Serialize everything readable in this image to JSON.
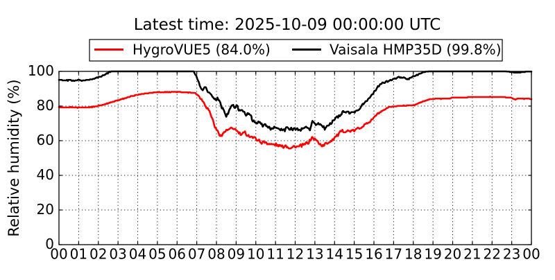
{
  "chart_data": {
    "type": "line",
    "title": "Latest time: 2025-10-09 00:00:00 UTC",
    "ylabel": "Relative humidity (%)",
    "xlabel": "",
    "xlim": [
      0,
      24
    ],
    "ylim": [
      0,
      100
    ],
    "yticks": [
      0,
      20,
      40,
      60,
      80,
      100
    ],
    "ytick_labels": [
      "0",
      "20",
      "40",
      "60",
      "80",
      "100"
    ],
    "xtick_labels": [
      "00",
      "01",
      "02",
      "03",
      "04",
      "05",
      "06",
      "07",
      "08",
      "09",
      "10",
      "11",
      "12",
      "13",
      "14",
      "15",
      "16",
      "17",
      "18",
      "19",
      "20",
      "21",
      "22",
      "23",
      "00"
    ],
    "grid": true,
    "grid_style": "dotted",
    "legend_position": "upper center, above axes",
    "series": [
      {
        "name": "HygroVUE5",
        "latest_value": "84.0%",
        "legend_label": "HygroVUE5 (84.0%)",
        "color": "#ff0000",
        "value_resolution": 0.3,
        "keypoints": [
          [
            0,
            79.4
          ],
          [
            0.3,
            79.0
          ],
          [
            0.6,
            79.3
          ],
          [
            0.9,
            79.1
          ],
          [
            1.2,
            79.3
          ],
          [
            1.5,
            79.3
          ],
          [
            1.75,
            79.5
          ],
          [
            2.2,
            80.6
          ],
          [
            2.7,
            82.3
          ],
          [
            3.2,
            84.0
          ],
          [
            3.7,
            85.7
          ],
          [
            4.2,
            86.9
          ],
          [
            4.7,
            87.7
          ],
          [
            5.1,
            88.0
          ],
          [
            5.6,
            88.1
          ],
          [
            6.2,
            88.1
          ],
          [
            6.9,
            87.7
          ],
          [
            7.15,
            85.2
          ],
          [
            7.4,
            81.2
          ],
          [
            7.6,
            77.8
          ],
          [
            7.8,
            72.3
          ],
          [
            7.97,
            66.6
          ],
          [
            8.12,
            64.2
          ],
          [
            8.27,
            63.0
          ],
          [
            8.42,
            65.4
          ],
          [
            8.6,
            66.6
          ],
          [
            8.9,
            67.4
          ],
          [
            9.05,
            65.5
          ],
          [
            9.25,
            63.5
          ],
          [
            9.45,
            64.6
          ],
          [
            9.6,
            62.9
          ],
          [
            9.85,
            62.0
          ],
          [
            10.1,
            60.7
          ],
          [
            10.3,
            59.4
          ],
          [
            10.55,
            58.7
          ],
          [
            10.8,
            57.4
          ],
          [
            11.0,
            57.7
          ],
          [
            11.25,
            56.6
          ],
          [
            11.5,
            57.3
          ],
          [
            11.7,
            56.2
          ],
          [
            11.95,
            56.8
          ],
          [
            12.2,
            56.8
          ],
          [
            12.45,
            57.8
          ],
          [
            12.7,
            59.0
          ],
          [
            12.85,
            61.5
          ],
          [
            13.0,
            60.6
          ],
          [
            13.3,
            57.8
          ],
          [
            13.45,
            57.0
          ],
          [
            13.65,
            58.7
          ],
          [
            13.8,
            60.0
          ],
          [
            14.05,
            62.6
          ],
          [
            14.3,
            64.9
          ],
          [
            14.55,
            65.7
          ],
          [
            14.75,
            65.4
          ],
          [
            15.0,
            65.9
          ],
          [
            15.25,
            67.4
          ],
          [
            15.55,
            69.4
          ],
          [
            15.8,
            71.1
          ],
          [
            16.0,
            73.4
          ],
          [
            16.25,
            75.9
          ],
          [
            16.45,
            77.2
          ],
          [
            16.65,
            78.5
          ],
          [
            16.85,
            79.5
          ],
          [
            17.2,
            80.1
          ],
          [
            17.7,
            80.3
          ],
          [
            18.0,
            80.3
          ],
          [
            18.2,
            81.3
          ],
          [
            18.5,
            82.7
          ],
          [
            18.8,
            83.8
          ],
          [
            19.1,
            84.2
          ],
          [
            19.85,
            84.2
          ],
          [
            19.95,
            84.9
          ],
          [
            20.7,
            84.9
          ],
          [
            20.85,
            85.3
          ],
          [
            22.6,
            85.3
          ],
          [
            22.72,
            84.9
          ],
          [
            22.95,
            84.9
          ],
          [
            23.05,
            84.3
          ],
          [
            23.18,
            83.7
          ],
          [
            23.28,
            84.2
          ],
          [
            23.9,
            84.2
          ],
          [
            24,
            84.0
          ]
        ],
        "noise_amplitude": [
          [
            0,
            0.25
          ],
          [
            2,
            0.25
          ],
          [
            4.5,
            0.15
          ],
          [
            6.9,
            0.2
          ],
          [
            7.4,
            0.9
          ],
          [
            8.2,
            1.2
          ],
          [
            13.8,
            1.2
          ],
          [
            14.6,
            0.9
          ],
          [
            16,
            0.6
          ],
          [
            17,
            0.3
          ],
          [
            17.5,
            0.07
          ],
          [
            24,
            0.07
          ]
        ]
      },
      {
        "name": "Vaisala HMP35D",
        "latest_value": "99.8%",
        "legend_label": "Vaisala HMP35D (99.8%)",
        "color": "#000000",
        "value_resolution": 0.3,
        "keypoints": [
          [
            0,
            95.4
          ],
          [
            0.25,
            94.6
          ],
          [
            0.5,
            95.1
          ],
          [
            0.8,
            94.6
          ],
          [
            1.0,
            95.1
          ],
          [
            1.2,
            94.7
          ],
          [
            1.4,
            94.9
          ],
          [
            1.6,
            95.4
          ],
          [
            1.8,
            95.9
          ],
          [
            2.0,
            96.6
          ],
          [
            2.2,
            97.5
          ],
          [
            2.4,
            98.6
          ],
          [
            2.6,
            99.9
          ],
          [
            2.8,
            100.6
          ],
          [
            3.0,
            100.7
          ],
          [
            6.6,
            100.7
          ],
          [
            6.85,
            100.3
          ],
          [
            7.0,
            96.5
          ],
          [
            7.1,
            93.5
          ],
          [
            7.2,
            90.6
          ],
          [
            7.3,
            89.6
          ],
          [
            7.42,
            90.7
          ],
          [
            7.6,
            87.6
          ],
          [
            7.78,
            85.4
          ],
          [
            7.9,
            83.2
          ],
          [
            8.05,
            84.2
          ],
          [
            8.2,
            81.5
          ],
          [
            8.35,
            76.9
          ],
          [
            8.5,
            74.2
          ],
          [
            8.65,
            78.0
          ],
          [
            8.85,
            80.0
          ],
          [
            8.95,
            78.8
          ],
          [
            9.07,
            79.4
          ],
          [
            9.2,
            76.9
          ],
          [
            9.37,
            77.4
          ],
          [
            9.5,
            75.5
          ],
          [
            9.65,
            76.1
          ],
          [
            9.85,
            71.6
          ],
          [
            10.0,
            70.1
          ],
          [
            10.18,
            70.8
          ],
          [
            10.36,
            68.1
          ],
          [
            10.54,
            68.8
          ],
          [
            10.72,
            66.9
          ],
          [
            10.9,
            67.5
          ],
          [
            11.07,
            66.2
          ],
          [
            11.25,
            67.0
          ],
          [
            11.48,
            66.1
          ],
          [
            11.65,
            67.4
          ],
          [
            11.83,
            66.5
          ],
          [
            12.05,
            67.0
          ],
          [
            12.3,
            66.2
          ],
          [
            12.55,
            67.6
          ],
          [
            12.75,
            67.0
          ],
          [
            12.88,
            71.3
          ],
          [
            13.0,
            69.4
          ],
          [
            13.17,
            70.7
          ],
          [
            13.35,
            68.1
          ],
          [
            13.52,
            66.7
          ],
          [
            13.7,
            68.8
          ],
          [
            13.88,
            70.8
          ],
          [
            14.05,
            72.8
          ],
          [
            14.22,
            74.5
          ],
          [
            14.4,
            76.1
          ],
          [
            14.58,
            77.0
          ],
          [
            14.75,
            76.1
          ],
          [
            14.92,
            75.9
          ],
          [
            15.1,
            77.5
          ],
          [
            15.28,
            78.8
          ],
          [
            15.45,
            81.2
          ],
          [
            15.62,
            82.8
          ],
          [
            15.8,
            84.8
          ],
          [
            15.97,
            87.5
          ],
          [
            16.15,
            90.5
          ],
          [
            16.32,
            92.4
          ],
          [
            16.5,
            93.2
          ],
          [
            16.68,
            94.1
          ],
          [
            16.85,
            95.0
          ],
          [
            17.02,
            95.9
          ],
          [
            17.2,
            96.4
          ],
          [
            17.38,
            96.8
          ],
          [
            17.55,
            96.4
          ],
          [
            17.72,
            95.6
          ],
          [
            17.9,
            96.4
          ],
          [
            18.07,
            97.5
          ],
          [
            18.25,
            98.3
          ],
          [
            18.45,
            99.2
          ],
          [
            18.7,
            100.0
          ],
          [
            18.9,
            100.6
          ],
          [
            22.6,
            100.4
          ],
          [
            22.8,
            99.9
          ],
          [
            23.0,
            99.5
          ],
          [
            23.15,
            99.3
          ],
          [
            23.4,
            99.4
          ],
          [
            23.6,
            99.6
          ],
          [
            23.85,
            99.8
          ],
          [
            24,
            99.8
          ]
        ],
        "noise_amplitude": [
          [
            0,
            0.4
          ],
          [
            2.5,
            0.35
          ],
          [
            3.3,
            0.15
          ],
          [
            6.7,
            0.15
          ],
          [
            7.3,
            1.0
          ],
          [
            8.2,
            1.3
          ],
          [
            14,
            1.2
          ],
          [
            15,
            0.9
          ],
          [
            16.2,
            0.7
          ],
          [
            17.5,
            0.55
          ],
          [
            18.6,
            0.2
          ],
          [
            19,
            0.1
          ],
          [
            22.5,
            0.08
          ],
          [
            24,
            0.08
          ]
        ]
      }
    ]
  }
}
